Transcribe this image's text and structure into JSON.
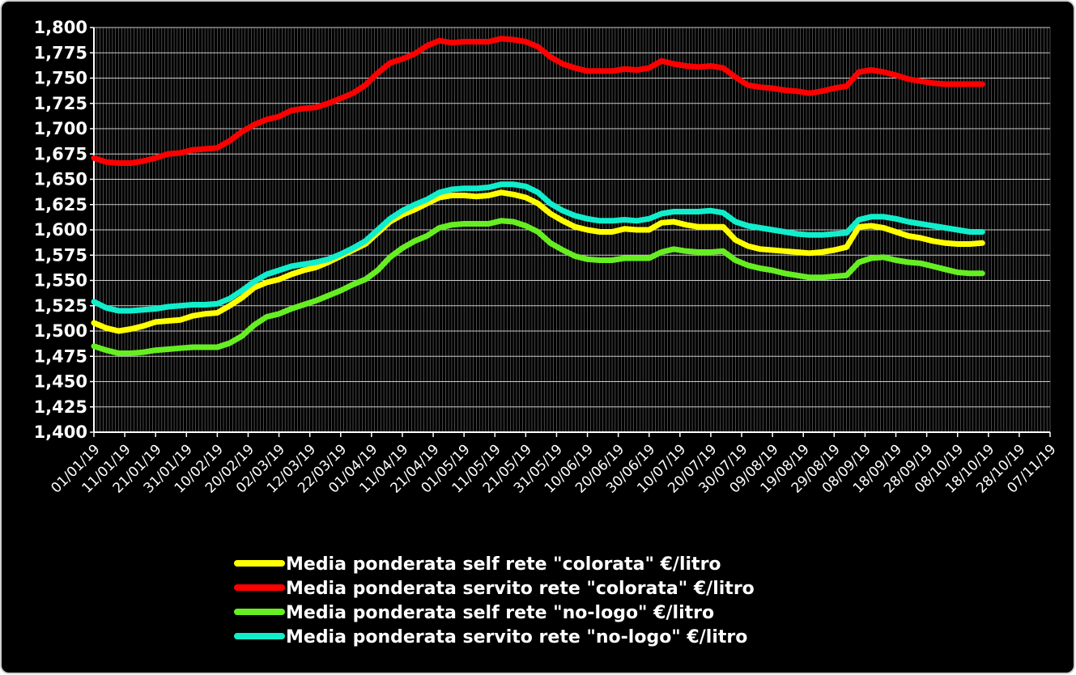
{
  "chart_data": {
    "type": "line",
    "title": "",
    "xlabel": "",
    "ylabel": "",
    "ylim": [
      1.4,
      1.8
    ],
    "y_ticks": [
      "1,400",
      "1,425",
      "1,450",
      "1,475",
      "1,500",
      "1,525",
      "1,550",
      "1,575",
      "1,600",
      "1,625",
      "1,650",
      "1,675",
      "1,700",
      "1,725",
      "1,750",
      "1,775",
      "1,800"
    ],
    "x_tick_labels": [
      "01/01/19",
      "11/01/19",
      "21/01/19",
      "31/01/19",
      "10/02/19",
      "20/02/19",
      "02/03/19",
      "12/03/19",
      "22/03/19",
      "01/04/19",
      "11/04/19",
      "21/04/19",
      "01/05/19",
      "11/05/19",
      "21/05/19",
      "31/05/19",
      "10/06/19",
      "20/06/19",
      "30/06/19",
      "10/07/19",
      "20/07/19",
      "30/07/19",
      "09/08/19",
      "19/08/19",
      "29/08/19",
      "08/09/19",
      "18/09/19",
      "28/09/19",
      "08/10/19",
      "18/10/19",
      "28/10/19",
      "07/11/19"
    ],
    "x_range_days": [
      0,
      310
    ],
    "grid": "vertical-dense-and-horizontal",
    "legend_position": "bottom",
    "series": [
      {
        "name": "Media ponderata self rete \"colorata\" €/litro",
        "color": "#ffff00",
        "points": [
          [
            0,
            1.508
          ],
          [
            4,
            1.503
          ],
          [
            8,
            1.5
          ],
          [
            12,
            1.502
          ],
          [
            16,
            1.505
          ],
          [
            20,
            1.509
          ],
          [
            24,
            1.51
          ],
          [
            28,
            1.511
          ],
          [
            32,
            1.515
          ],
          [
            36,
            1.517
          ],
          [
            40,
            1.518
          ],
          [
            44,
            1.525
          ],
          [
            48,
            1.533
          ],
          [
            52,
            1.543
          ],
          [
            56,
            1.548
          ],
          [
            60,
            1.551
          ],
          [
            64,
            1.556
          ],
          [
            68,
            1.56
          ],
          [
            72,
            1.563
          ],
          [
            76,
            1.568
          ],
          [
            80,
            1.574
          ],
          [
            84,
            1.58
          ],
          [
            88,
            1.586
          ],
          [
            92,
            1.597
          ],
          [
            96,
            1.608
          ],
          [
            100,
            1.615
          ],
          [
            104,
            1.62
          ],
          [
            108,
            1.626
          ],
          [
            112,
            1.632
          ],
          [
            116,
            1.634
          ],
          [
            120,
            1.634
          ],
          [
            124,
            1.633
          ],
          [
            128,
            1.634
          ],
          [
            132,
            1.637
          ],
          [
            136,
            1.635
          ],
          [
            140,
            1.632
          ],
          [
            144,
            1.626
          ],
          [
            148,
            1.616
          ],
          [
            152,
            1.609
          ],
          [
            156,
            1.603
          ],
          [
            160,
            1.6
          ],
          [
            164,
            1.598
          ],
          [
            168,
            1.598
          ],
          [
            172,
            1.601
          ],
          [
            176,
            1.6
          ],
          [
            180,
            1.6
          ],
          [
            184,
            1.607
          ],
          [
            188,
            1.608
          ],
          [
            192,
            1.605
          ],
          [
            196,
            1.603
          ],
          [
            200,
            1.603
          ],
          [
            204,
            1.603
          ],
          [
            208,
            1.59
          ],
          [
            212,
            1.584
          ],
          [
            216,
            1.581
          ],
          [
            220,
            1.58
          ],
          [
            224,
            1.579
          ],
          [
            228,
            1.578
          ],
          [
            232,
            1.577
          ],
          [
            236,
            1.578
          ],
          [
            240,
            1.58
          ],
          [
            244,
            1.583
          ],
          [
            248,
            1.603
          ],
          [
            252,
            1.604
          ],
          [
            256,
            1.602
          ],
          [
            260,
            1.598
          ],
          [
            264,
            1.594
          ],
          [
            268,
            1.592
          ],
          [
            272,
            1.589
          ],
          [
            276,
            1.587
          ],
          [
            280,
            1.586
          ],
          [
            284,
            1.586
          ],
          [
            288,
            1.587
          ]
        ]
      },
      {
        "name": "Media ponderata servito rete \"colorata\" €/litro",
        "color": "#ff0000",
        "points": [
          [
            0,
            1.671
          ],
          [
            4,
            1.667
          ],
          [
            8,
            1.666
          ],
          [
            12,
            1.666
          ],
          [
            16,
            1.668
          ],
          [
            20,
            1.671
          ],
          [
            24,
            1.675
          ],
          [
            28,
            1.676
          ],
          [
            32,
            1.679
          ],
          [
            36,
            1.68
          ],
          [
            40,
            1.681
          ],
          [
            44,
            1.688
          ],
          [
            48,
            1.697
          ],
          [
            52,
            1.704
          ],
          [
            56,
            1.709
          ],
          [
            60,
            1.712
          ],
          [
            64,
            1.718
          ],
          [
            68,
            1.72
          ],
          [
            72,
            1.721
          ],
          [
            76,
            1.725
          ],
          [
            80,
            1.73
          ],
          [
            84,
            1.735
          ],
          [
            88,
            1.743
          ],
          [
            92,
            1.755
          ],
          [
            96,
            1.765
          ],
          [
            100,
            1.769
          ],
          [
            104,
            1.774
          ],
          [
            108,
            1.782
          ],
          [
            112,
            1.787
          ],
          [
            116,
            1.785
          ],
          [
            120,
            1.786
          ],
          [
            124,
            1.786
          ],
          [
            128,
            1.786
          ],
          [
            132,
            1.789
          ],
          [
            136,
            1.788
          ],
          [
            140,
            1.786
          ],
          [
            144,
            1.781
          ],
          [
            148,
            1.771
          ],
          [
            152,
            1.764
          ],
          [
            156,
            1.76
          ],
          [
            160,
            1.757
          ],
          [
            164,
            1.757
          ],
          [
            168,
            1.757
          ],
          [
            172,
            1.759
          ],
          [
            176,
            1.758
          ],
          [
            180,
            1.76
          ],
          [
            184,
            1.767
          ],
          [
            188,
            1.764
          ],
          [
            192,
            1.762
          ],
          [
            196,
            1.761
          ],
          [
            200,
            1.762
          ],
          [
            204,
            1.76
          ],
          [
            208,
            1.751
          ],
          [
            212,
            1.743
          ],
          [
            216,
            1.741
          ],
          [
            220,
            1.74
          ],
          [
            224,
            1.738
          ],
          [
            228,
            1.737
          ],
          [
            232,
            1.735
          ],
          [
            236,
            1.737
          ],
          [
            240,
            1.74
          ],
          [
            244,
            1.742
          ],
          [
            248,
            1.756
          ],
          [
            252,
            1.758
          ],
          [
            256,
            1.756
          ],
          [
            260,
            1.753
          ],
          [
            264,
            1.749
          ],
          [
            268,
            1.747
          ],
          [
            272,
            1.745
          ],
          [
            276,
            1.744
          ],
          [
            280,
            1.744
          ],
          [
            284,
            1.744
          ],
          [
            288,
            1.744
          ]
        ]
      },
      {
        "name": "Media ponderata self rete \"no-logo\" €/litro",
        "color": "#66ee22",
        "points": [
          [
            0,
            1.485
          ],
          [
            4,
            1.481
          ],
          [
            8,
            1.478
          ],
          [
            12,
            1.478
          ],
          [
            16,
            1.479
          ],
          [
            20,
            1.481
          ],
          [
            24,
            1.482
          ],
          [
            28,
            1.483
          ],
          [
            32,
            1.484
          ],
          [
            36,
            1.484
          ],
          [
            40,
            1.484
          ],
          [
            44,
            1.488
          ],
          [
            48,
            1.495
          ],
          [
            52,
            1.506
          ],
          [
            56,
            1.514
          ],
          [
            60,
            1.517
          ],
          [
            64,
            1.522
          ],
          [
            68,
            1.526
          ],
          [
            72,
            1.53
          ],
          [
            76,
            1.535
          ],
          [
            80,
            1.54
          ],
          [
            84,
            1.546
          ],
          [
            88,
            1.551
          ],
          [
            92,
            1.56
          ],
          [
            96,
            1.573
          ],
          [
            100,
            1.582
          ],
          [
            104,
            1.589
          ],
          [
            108,
            1.594
          ],
          [
            112,
            1.602
          ],
          [
            116,
            1.605
          ],
          [
            120,
            1.606
          ],
          [
            124,
            1.606
          ],
          [
            128,
            1.606
          ],
          [
            132,
            1.609
          ],
          [
            136,
            1.608
          ],
          [
            140,
            1.604
          ],
          [
            144,
            1.598
          ],
          [
            148,
            1.587
          ],
          [
            152,
            1.58
          ],
          [
            156,
            1.574
          ],
          [
            160,
            1.571
          ],
          [
            164,
            1.57
          ],
          [
            168,
            1.57
          ],
          [
            172,
            1.572
          ],
          [
            176,
            1.572
          ],
          [
            180,
            1.572
          ],
          [
            184,
            1.578
          ],
          [
            188,
            1.581
          ],
          [
            192,
            1.579
          ],
          [
            196,
            1.578
          ],
          [
            200,
            1.578
          ],
          [
            204,
            1.579
          ],
          [
            208,
            1.57
          ],
          [
            212,
            1.565
          ],
          [
            216,
            1.562
          ],
          [
            220,
            1.56
          ],
          [
            224,
            1.557
          ],
          [
            228,
            1.555
          ],
          [
            232,
            1.553
          ],
          [
            236,
            1.553
          ],
          [
            240,
            1.554
          ],
          [
            244,
            1.555
          ],
          [
            248,
            1.568
          ],
          [
            252,
            1.572
          ],
          [
            256,
            1.573
          ],
          [
            260,
            1.57
          ],
          [
            264,
            1.568
          ],
          [
            268,
            1.567
          ],
          [
            272,
            1.564
          ],
          [
            276,
            1.561
          ],
          [
            280,
            1.558
          ],
          [
            284,
            1.557
          ],
          [
            288,
            1.557
          ]
        ]
      },
      {
        "name": "Media ponderata servito rete \"no-logo\" €/litro",
        "color": "#11eecc",
        "points": [
          [
            0,
            1.529
          ],
          [
            4,
            1.523
          ],
          [
            8,
            1.52
          ],
          [
            12,
            1.52
          ],
          [
            16,
            1.521
          ],
          [
            20,
            1.522
          ],
          [
            24,
            1.524
          ],
          [
            28,
            1.525
          ],
          [
            32,
            1.526
          ],
          [
            36,
            1.526
          ],
          [
            40,
            1.527
          ],
          [
            44,
            1.532
          ],
          [
            48,
            1.54
          ],
          [
            52,
            1.549
          ],
          [
            56,
            1.556
          ],
          [
            60,
            1.56
          ],
          [
            64,
            1.564
          ],
          [
            68,
            1.566
          ],
          [
            72,
            1.568
          ],
          [
            76,
            1.571
          ],
          [
            80,
            1.576
          ],
          [
            84,
            1.582
          ],
          [
            88,
            1.589
          ],
          [
            92,
            1.6
          ],
          [
            96,
            1.611
          ],
          [
            100,
            1.619
          ],
          [
            104,
            1.625
          ],
          [
            108,
            1.63
          ],
          [
            112,
            1.637
          ],
          [
            116,
            1.64
          ],
          [
            120,
            1.641
          ],
          [
            124,
            1.641
          ],
          [
            128,
            1.642
          ],
          [
            132,
            1.645
          ],
          [
            136,
            1.645
          ],
          [
            140,
            1.643
          ],
          [
            144,
            1.637
          ],
          [
            148,
            1.626
          ],
          [
            152,
            1.619
          ],
          [
            156,
            1.614
          ],
          [
            160,
            1.611
          ],
          [
            164,
            1.609
          ],
          [
            168,
            1.609
          ],
          [
            172,
            1.61
          ],
          [
            176,
            1.609
          ],
          [
            180,
            1.611
          ],
          [
            184,
            1.616
          ],
          [
            188,
            1.618
          ],
          [
            192,
            1.618
          ],
          [
            196,
            1.618
          ],
          [
            200,
            1.619
          ],
          [
            204,
            1.617
          ],
          [
            208,
            1.608
          ],
          [
            212,
            1.604
          ],
          [
            216,
            1.602
          ],
          [
            220,
            1.6
          ],
          [
            224,
            1.598
          ],
          [
            228,
            1.596
          ],
          [
            232,
            1.595
          ],
          [
            236,
            1.595
          ],
          [
            240,
            1.596
          ],
          [
            244,
            1.597
          ],
          [
            248,
            1.61
          ],
          [
            252,
            1.613
          ],
          [
            256,
            1.613
          ],
          [
            260,
            1.611
          ],
          [
            264,
            1.608
          ],
          [
            268,
            1.606
          ],
          [
            272,
            1.604
          ],
          [
            276,
            1.602
          ],
          [
            280,
            1.6
          ],
          [
            284,
            1.598
          ],
          [
            288,
            1.598
          ]
        ]
      }
    ]
  }
}
